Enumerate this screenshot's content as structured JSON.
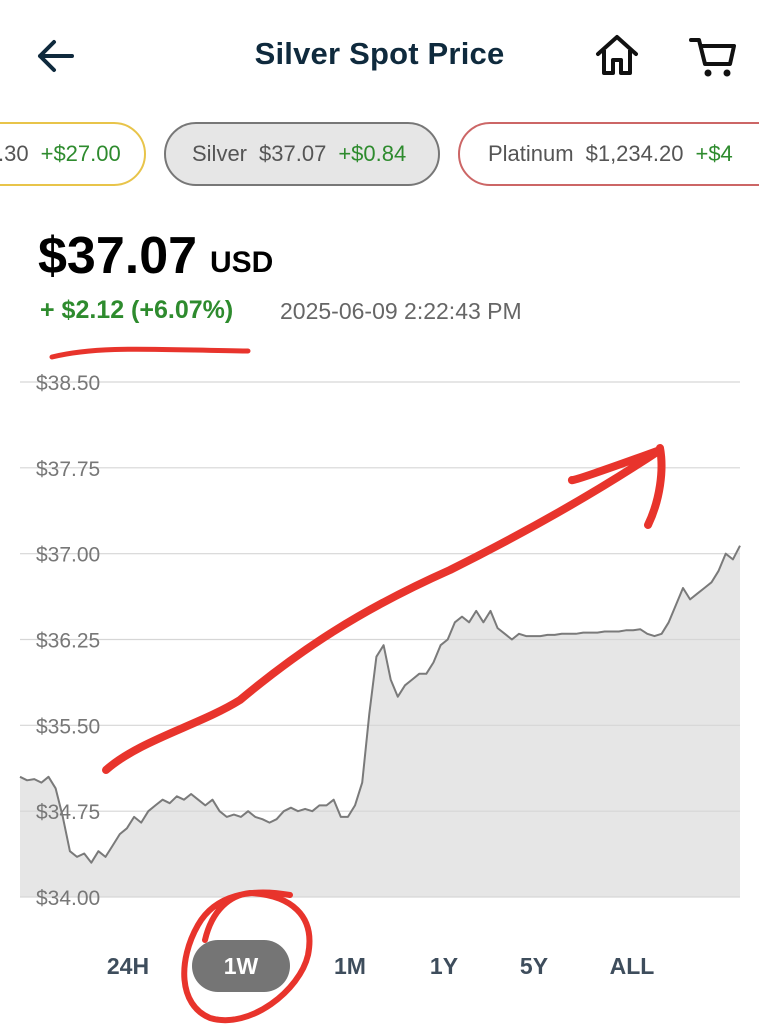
{
  "header": {
    "title": "Silver Spot Price",
    "back_icon": "arrow-left-icon",
    "home_icon": "home-icon",
    "cart_icon": "cart-icon",
    "title_color": "#0f2a3d"
  },
  "metals": [
    {
      "name": "",
      "price": ".30",
      "change": "+$27.00",
      "border": "#e8c44a"
    },
    {
      "name": "Silver",
      "price": "$37.07",
      "change": "+$0.84",
      "border": "#777777",
      "selected": true
    },
    {
      "name": "Platinum",
      "price": "$1,234.20",
      "change": "+$4",
      "border": "#cc6666"
    }
  ],
  "quote": {
    "price": "$37.07",
    "currency": "USD",
    "change": "+ $2.12 (+6.07%)",
    "timestamp": "2025-06-09 2:22:43 PM",
    "up_color": "#2e8b2e"
  },
  "chart_data": {
    "type": "area",
    "ylim": [
      34.0,
      38.5
    ],
    "yticks": [
      "$38.50",
      "$37.75",
      "$37.00",
      "$36.25",
      "$35.50",
      "$34.75",
      "$34.00"
    ],
    "ytick_values": [
      38.5,
      37.75,
      37.0,
      36.25,
      35.5,
      34.75,
      34.0
    ],
    "grid": true,
    "line_color": "#7a7a7a",
    "fill_color": "#e6e6e6",
    "series": [
      {
        "values": [
          35.05,
          35.02,
          35.03,
          35.0,
          35.05,
          34.95,
          34.7,
          34.4,
          34.35,
          34.38,
          34.3,
          34.4,
          34.35,
          34.45,
          34.55,
          34.6,
          34.7,
          34.65,
          34.75,
          34.8,
          34.85,
          34.82,
          34.88,
          34.85,
          34.9,
          34.85,
          34.8,
          34.85,
          34.75,
          34.7,
          34.72,
          34.7,
          34.75,
          34.7,
          34.68,
          34.65,
          34.68,
          34.75,
          34.78,
          34.75,
          34.77,
          34.75,
          34.8,
          34.8,
          34.85,
          34.7,
          34.7,
          34.8,
          35.0,
          35.6,
          36.1,
          36.2,
          35.9,
          35.75,
          35.85,
          35.9,
          35.95,
          35.95,
          36.05,
          36.2,
          36.25,
          36.4,
          36.45,
          36.4,
          36.5,
          36.4,
          36.5,
          36.35,
          36.3,
          36.25,
          36.3,
          36.28,
          36.28,
          36.28,
          36.29,
          36.29,
          36.3,
          36.3,
          36.3,
          36.31,
          36.31,
          36.31,
          36.32,
          36.32,
          36.32,
          36.33,
          36.33,
          36.34,
          36.3,
          36.28,
          36.3,
          36.4,
          36.55,
          36.7,
          36.6,
          36.65,
          36.7,
          36.75,
          36.85,
          37.0,
          36.95,
          37.07
        ]
      }
    ]
  },
  "ranges": [
    "24H",
    "1W",
    "1M",
    "1Y",
    "5Y",
    "ALL"
  ],
  "active_range": "1W",
  "annotation_color": "#e8342c"
}
